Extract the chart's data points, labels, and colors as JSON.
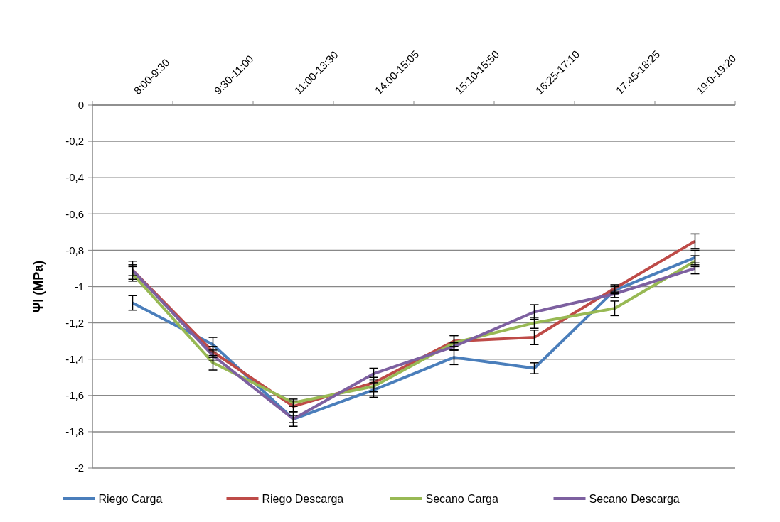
{
  "chart_data": {
    "type": "line",
    "ylabel": "Ψl (MPa)",
    "categories": [
      "8:00-9:30",
      "9:30-11:00",
      "11:00-13:30",
      "14:00-15:05",
      "15:10-15:50",
      "16:25-17:10",
      "17:45-18:25",
      "19:0-19:20"
    ],
    "ylim": [
      -2,
      0
    ],
    "yticks": [
      {
        "value": -2,
        "label": "-2"
      },
      {
        "value": -1.8,
        "label": "-1,8"
      },
      {
        "value": -1.6,
        "label": "-1,6"
      },
      {
        "value": -1.4,
        "label": "-1,4"
      },
      {
        "value": -1.2,
        "label": "-1,2"
      },
      {
        "value": -1,
        "label": "-1"
      },
      {
        "value": -0.8,
        "label": "-0,8"
      },
      {
        "value": -0.6,
        "label": "-0,6"
      },
      {
        "value": -0.4,
        "label": "-0,4"
      },
      {
        "value": -0.2,
        "label": "-0,2"
      },
      {
        "value": 0,
        "label": "0"
      }
    ],
    "grid": "y",
    "legend": "bottom",
    "line_style": "solid",
    "series": [
      {
        "name": "Riego Carga",
        "color": "#4a7ebb",
        "values": [
          -1.09,
          -1.32,
          -1.73,
          -1.57,
          -1.39,
          -1.45,
          -1.02,
          -0.84
        ],
        "errors": [
          0.04,
          0.04,
          0.04,
          0.04,
          0.04,
          0.03,
          0.02,
          0.04
        ]
      },
      {
        "name": "Riego Descarga",
        "color": "#be4b48",
        "values": [
          -0.91,
          -1.36,
          -1.66,
          -1.53,
          -1.3,
          -1.28,
          -1.01,
          -0.75
        ],
        "errors": [
          0.03,
          0.03,
          0.03,
          0.03,
          0.03,
          0.04,
          0.02,
          0.04
        ]
      },
      {
        "name": "Secano Carga",
        "color": "#98b954",
        "values": [
          -0.93,
          -1.42,
          -1.64,
          -1.55,
          -1.31,
          -1.2,
          -1.12,
          -0.86
        ],
        "errors": [
          0.04,
          0.04,
          0.02,
          0.03,
          0.04,
          0.03,
          0.04,
          0.03
        ]
      },
      {
        "name": "Secano Descarga",
        "color": "#7d60a0",
        "values": [
          -0.91,
          -1.38,
          -1.73,
          -1.48,
          -1.33,
          -1.14,
          -1.04,
          -0.9
        ],
        "errors": [
          0.05,
          0.03,
          0.02,
          0.03,
          0.02,
          0.04,
          0.02,
          0.03
        ]
      }
    ]
  }
}
